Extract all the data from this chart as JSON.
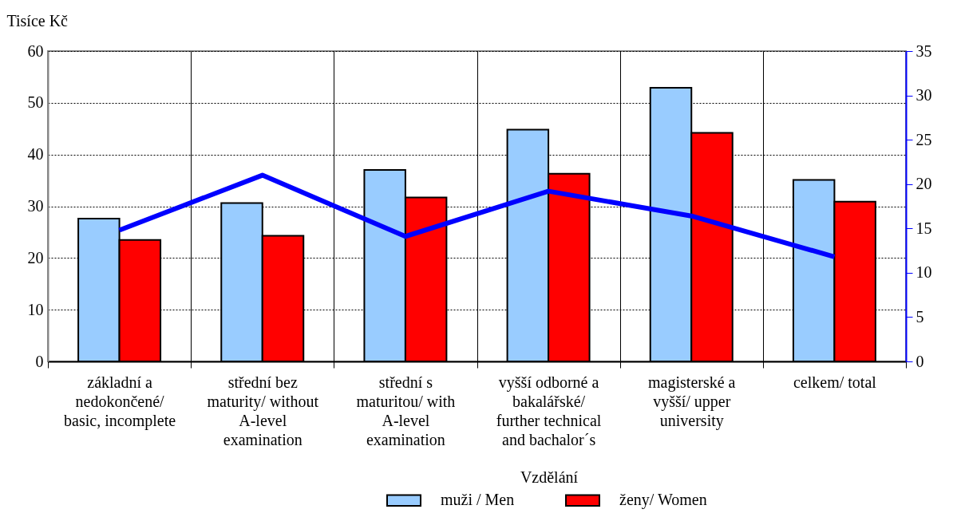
{
  "chart_data": {
    "type": "bar",
    "ylabel": "Tisíce Kč",
    "legend_title": "Vzdělání",
    "legend": "bottom",
    "grid": true,
    "categories": [
      "základní a nedokončené/ basic, incomplete",
      "střední bez maturity/ without A-level examination",
      "střední s maturitou/ with A-level examination",
      "vyšší odborné a bakalářské/ further technical and bachalor´s",
      "magisterské a vyšší/ upper university",
      "celkem/ total"
    ],
    "series": [
      {
        "name": "muži / Men",
        "color": "#99ccff",
        "values": [
          27.6,
          30.6,
          37.0,
          44.8,
          52.9,
          35.1
        ]
      },
      {
        "name": "ženy/ Women",
        "color": "#ff0000",
        "values": [
          23.5,
          24.3,
          31.7,
          36.3,
          44.2,
          30.9
        ]
      },
      {
        "type": "line",
        "axis": "y2",
        "color": "#0000ff",
        "values": [
          14.8,
          21.0,
          14.1,
          19.2,
          16.4,
          11.8
        ]
      }
    ],
    "ylim": [
      0,
      60
    ],
    "yticks": [
      0,
      10,
      20,
      30,
      40,
      50,
      60
    ],
    "y2lim": [
      0,
      35
    ],
    "y2ticks": [
      0,
      5,
      10,
      15,
      20,
      25,
      30,
      35
    ]
  }
}
